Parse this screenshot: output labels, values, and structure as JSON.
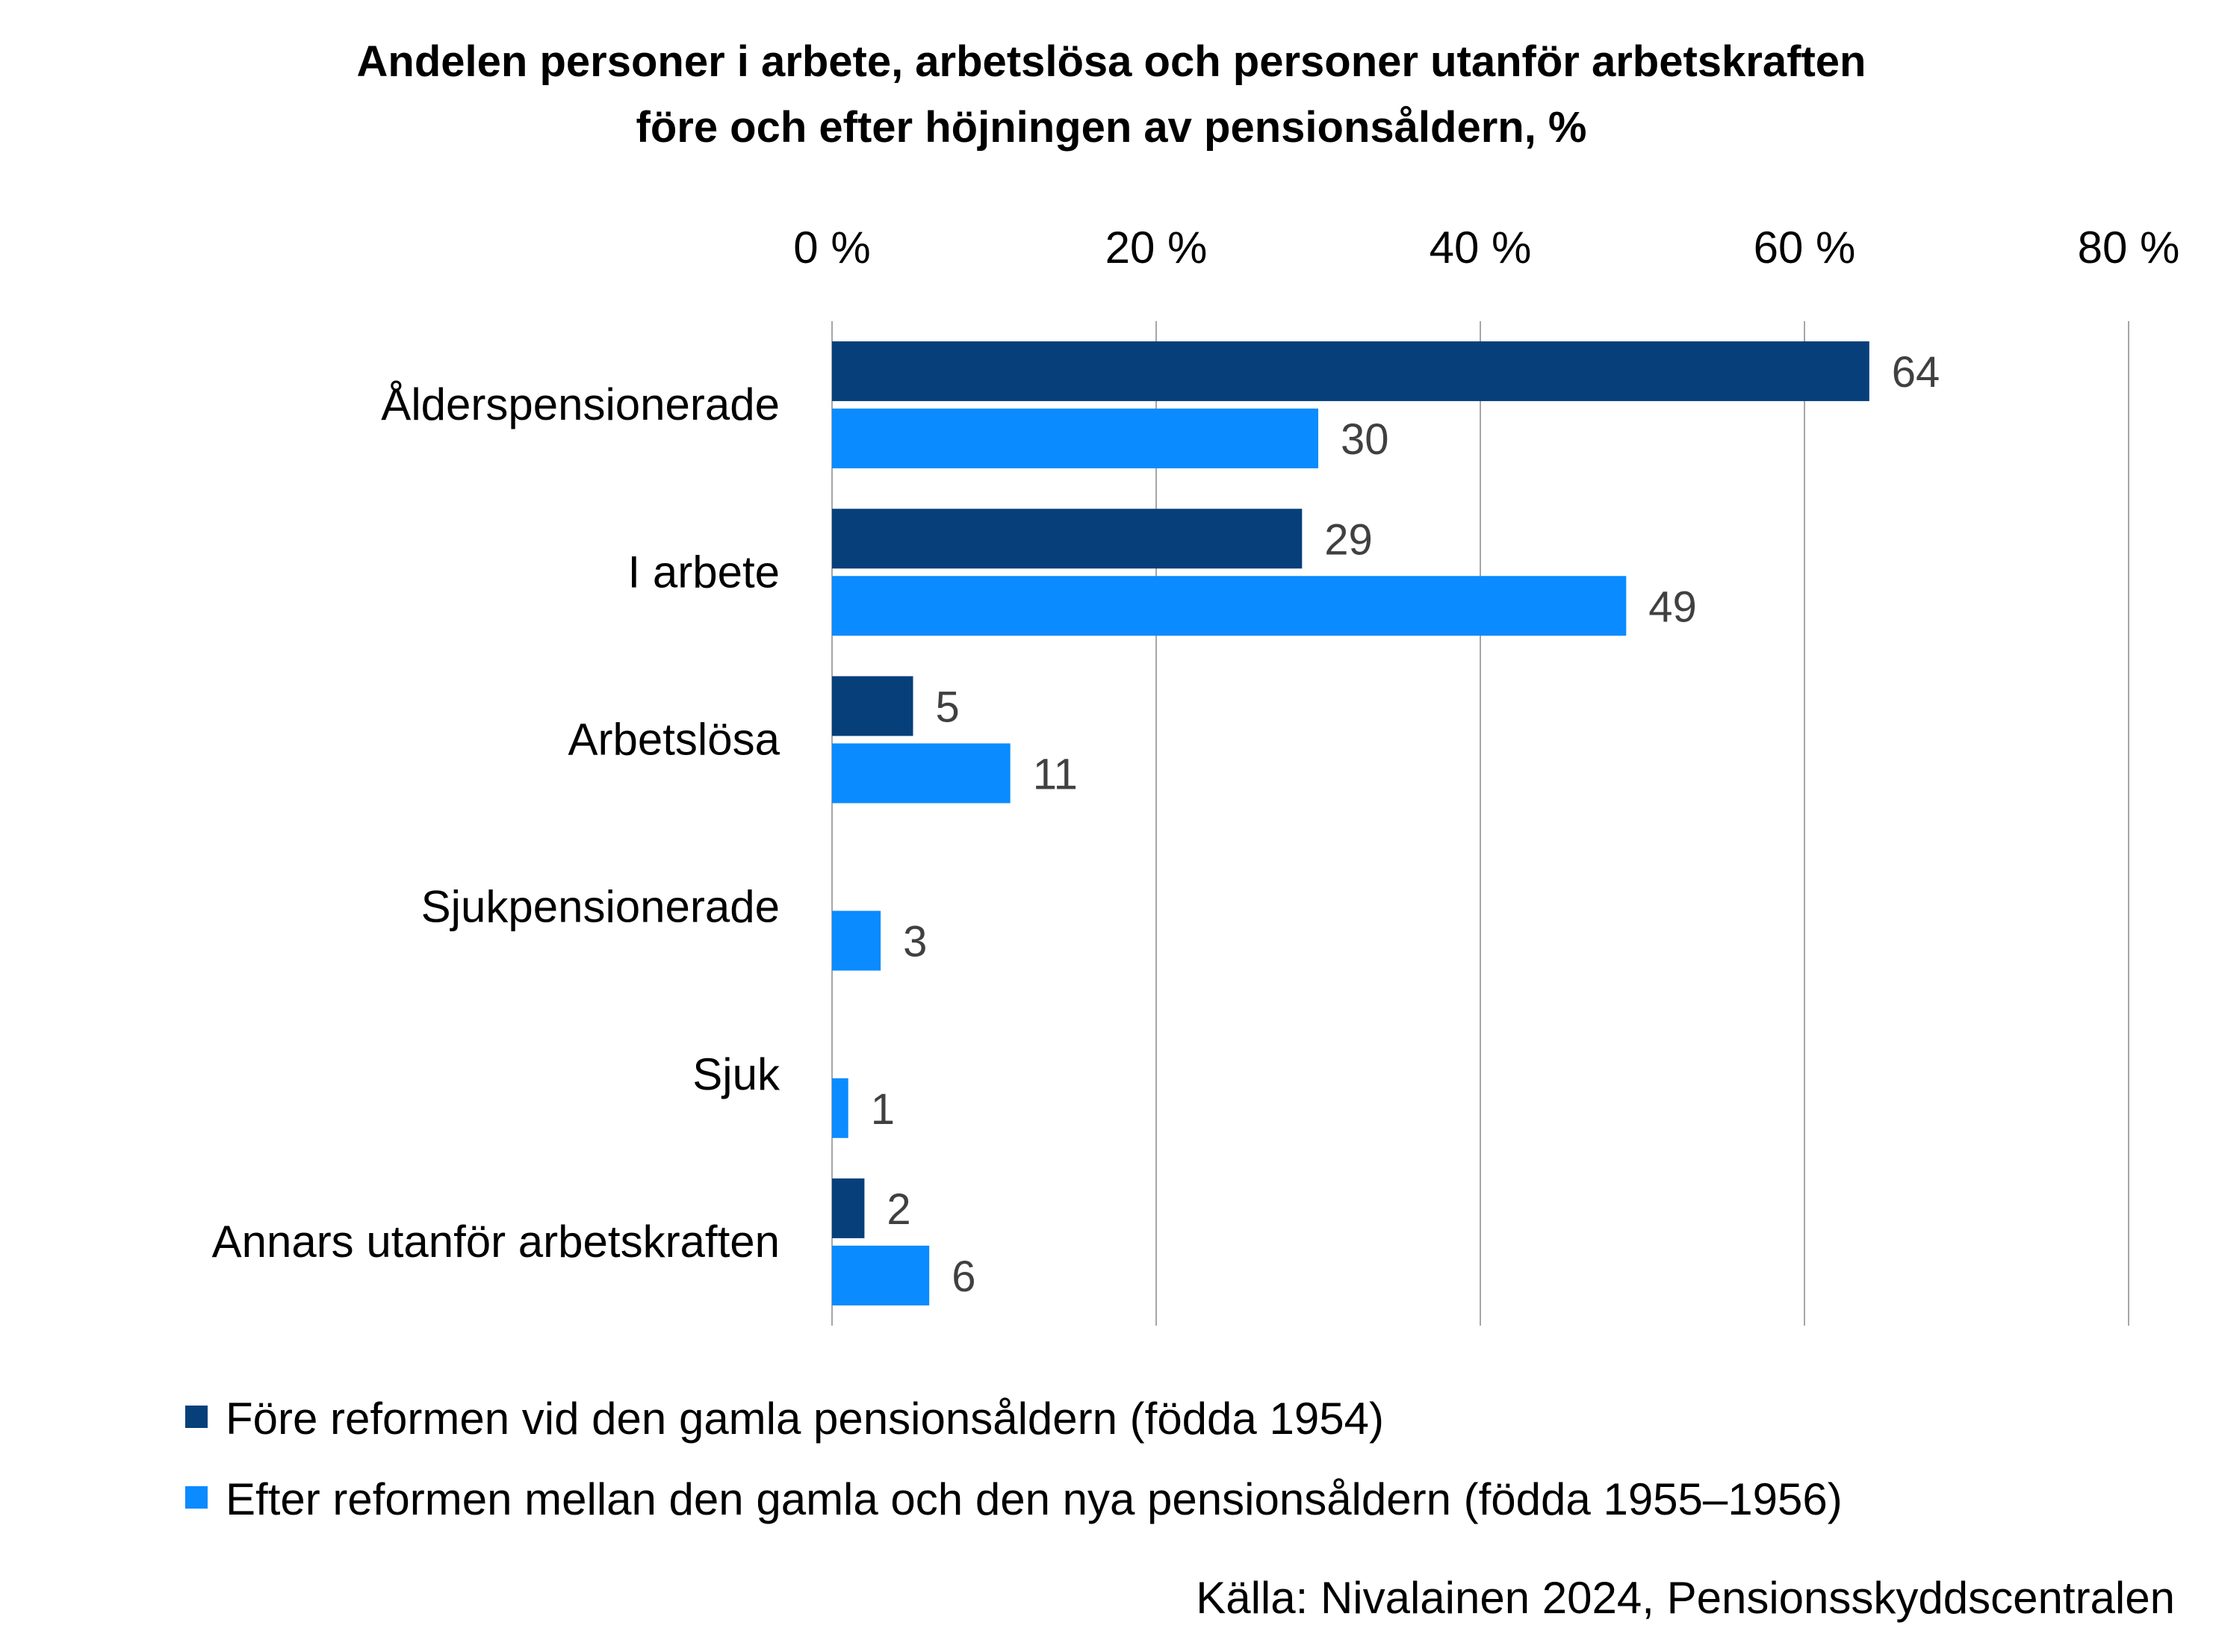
{
  "chart_data": {
    "type": "bar",
    "orientation": "horizontal",
    "title_lines": [
      "Andelen personer i arbete, arbetslösa och personer utanför arbetskraften",
      "före och efter höjningen av pensionsåldern, %"
    ],
    "categories": [
      "Ålderspensionerade",
      "I arbete",
      "Arbetslösa",
      "Sjukpensionerade",
      "Sjuk",
      "Annars utanför arbetskraften"
    ],
    "series": [
      {
        "name": "Före reformen vid den gamla pensionsåldern (födda 1954)",
        "color": "#063F7A",
        "values": [
          64,
          29,
          5,
          null,
          null,
          2
        ],
        "labels": [
          "64",
          "29",
          "5",
          "",
          "",
          "2"
        ]
      },
      {
        "name": "Efter reformen mellan den gamla och den nya pensionsåldern (födda 1955–1956)",
        "color": "#0A8BFF",
        "values": [
          30,
          49,
          11,
          3,
          1,
          6
        ],
        "labels": [
          "30",
          "49",
          "11",
          "3",
          "1",
          "6"
        ]
      }
    ],
    "x_axis": {
      "min": 0,
      "max": 80,
      "ticks": [
        0,
        20,
        40,
        60,
        80
      ],
      "tick_labels": [
        "0 %",
        "20 %",
        "40 %",
        "60 %",
        "80 %"
      ],
      "position": "top",
      "gridlines": true
    },
    "legend_position": "bottom-left",
    "source": "Källa: Nivalainen 2024, Pensionsskyddscentralen"
  }
}
